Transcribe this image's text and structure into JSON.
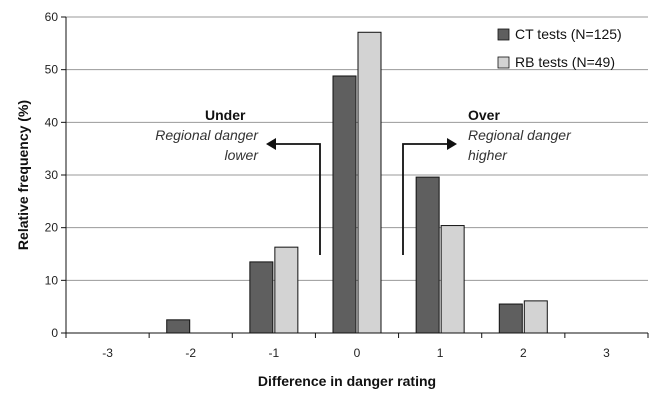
{
  "chart_data": {
    "type": "bar",
    "categories": [
      "-3",
      "-2",
      "-1",
      "0",
      "1",
      "2",
      "3"
    ],
    "series": [
      {
        "name": "CT tests (N=125)",
        "values": [
          0,
          2.5,
          13.5,
          48.8,
          29.6,
          5.5,
          0
        ],
        "color": "#5f5f5f"
      },
      {
        "name": "RB tests (N=49)",
        "values": [
          0,
          0,
          16.3,
          57.1,
          20.4,
          6.1,
          0
        ],
        "color": "#d3d3d3"
      }
    ],
    "xlabel": "Difference in danger rating",
    "ylabel": "Relative frequency (%)",
    "ylim": [
      0,
      60
    ],
    "yticks": [
      0,
      10,
      20,
      30,
      40,
      50,
      60
    ],
    "grid": true,
    "legend_position": "top-right",
    "annotations": {
      "under": {
        "title": "Under",
        "line1": "Regional danger",
        "line2": "lower"
      },
      "over": {
        "title": "Over",
        "line1": "Regional danger",
        "line2": "higher"
      }
    }
  }
}
